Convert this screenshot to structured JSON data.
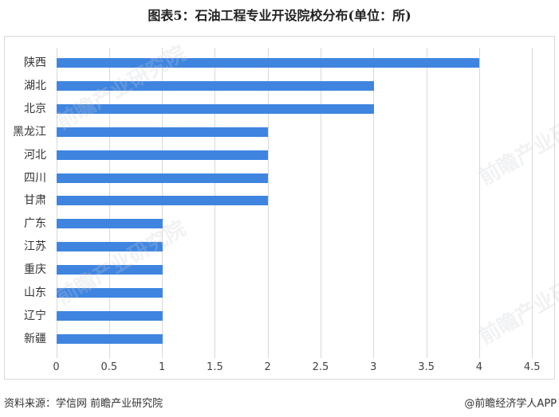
{
  "title": "图表5：石油工程专业开设院校分布(单位：所)",
  "chart_data": {
    "type": "bar",
    "orientation": "horizontal",
    "title": "图表5：石油工程专业开设院校分布(单位：所)",
    "categories": [
      "陕西",
      "湖北",
      "北京",
      "黑龙江",
      "河北",
      "四川",
      "甘肃",
      "广东",
      "江苏",
      "重庆",
      "山东",
      "辽宁",
      "新疆"
    ],
    "values": [
      4,
      3,
      3,
      2,
      2,
      2,
      2,
      1,
      1,
      1,
      1,
      1,
      1
    ],
    "xlabel": "",
    "ylabel": "",
    "xlim": [
      0,
      4.5
    ],
    "xticks": [
      "0",
      "0.5",
      "1",
      "1.5",
      "2",
      "2.5",
      "3",
      "3.5",
      "4",
      "4.5"
    ],
    "grid": true,
    "legend": null,
    "bar_color": "#3f85e0"
  },
  "footer": {
    "source": "资料来源：学信网 前瞻产业研究院",
    "credit": "@前瞻经济学人APP"
  },
  "watermark": "前瞻产业研究院"
}
